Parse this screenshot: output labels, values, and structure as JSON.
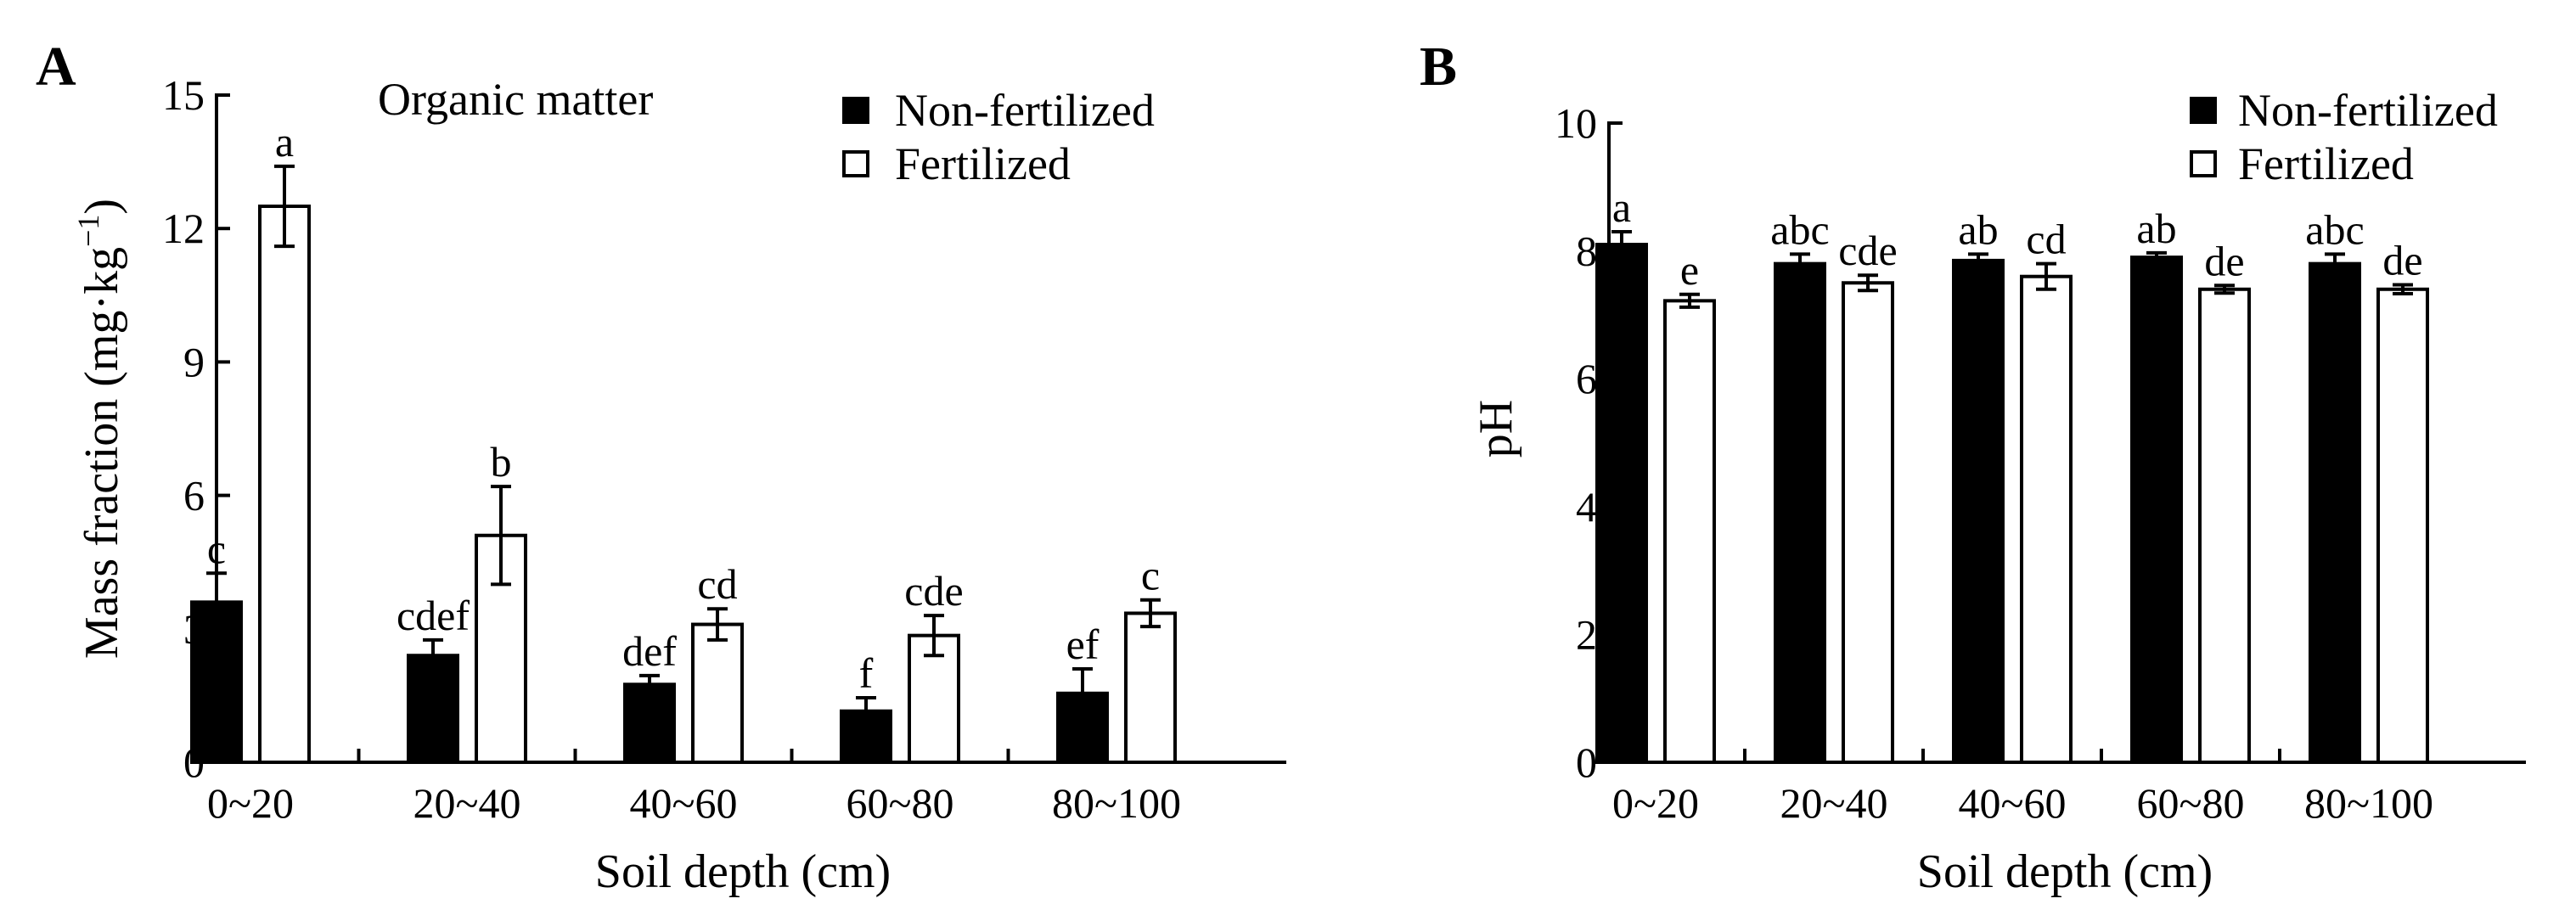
{
  "chart_data": [
    {
      "type": "bar",
      "panel_label": "A",
      "annotation": "Organic matter",
      "categories": [
        "0~20",
        "20~40",
        "40~60",
        "60~80",
        "80~100"
      ],
      "xlabel": "Soil depth (cm)",
      "ylabel_main": "Mass fraction (mg·kg",
      "ylabel_sup": "−1",
      "ylabel_close": ")",
      "ylim": [
        0,
        15
      ],
      "yticks": [
        0,
        3,
        6,
        9,
        12,
        15
      ],
      "legend": {
        "position": "top-right"
      },
      "series": [
        {
          "name": "Non-fertilized",
          "color": "#000000",
          "values": [
            3.6,
            2.4,
            1.75,
            1.15,
            1.55
          ],
          "errors": [
            0.65,
            0.35,
            0.2,
            0.3,
            0.55
          ],
          "labels": [
            "c",
            "cdef",
            "def",
            "f",
            "ef"
          ]
        },
        {
          "name": "Fertilized",
          "color": "#ffffff",
          "values": [
            12.5,
            5.1,
            3.1,
            2.85,
            3.35
          ],
          "errors": [
            0.9,
            1.1,
            0.35,
            0.45,
            0.3
          ],
          "labels": [
            "a",
            "b",
            "cd",
            "cde",
            "c"
          ]
        }
      ]
    },
    {
      "type": "bar",
      "panel_label": "B",
      "categories": [
        "0~20",
        "20~40",
        "40~60",
        "60~80",
        "80~100"
      ],
      "xlabel": "Soil depth (cm)",
      "ylabel_main": "pH",
      "ylabel_sup": "",
      "ylabel_close": "",
      "ylim": [
        0,
        10
      ],
      "yticks": [
        0,
        2,
        4,
        6,
        8,
        10
      ],
      "legend": {
        "position": "top-right"
      },
      "series": [
        {
          "name": "Non-fertilized",
          "color": "#000000",
          "values": [
            8.1,
            7.8,
            7.85,
            7.9,
            7.8
          ],
          "errors": [
            0.2,
            0.15,
            0.1,
            0.07,
            0.15
          ],
          "labels": [
            "a",
            "abc",
            "ab",
            "ab",
            "abc"
          ]
        },
        {
          "name": "Fertilized",
          "color": "#ffffff",
          "values": [
            7.22,
            7.5,
            7.6,
            7.4,
            7.4
          ],
          "errors": [
            0.1,
            0.12,
            0.2,
            0.06,
            0.07
          ],
          "labels": [
            "e",
            "cde",
            "cd",
            "de",
            "de"
          ]
        }
      ]
    }
  ]
}
